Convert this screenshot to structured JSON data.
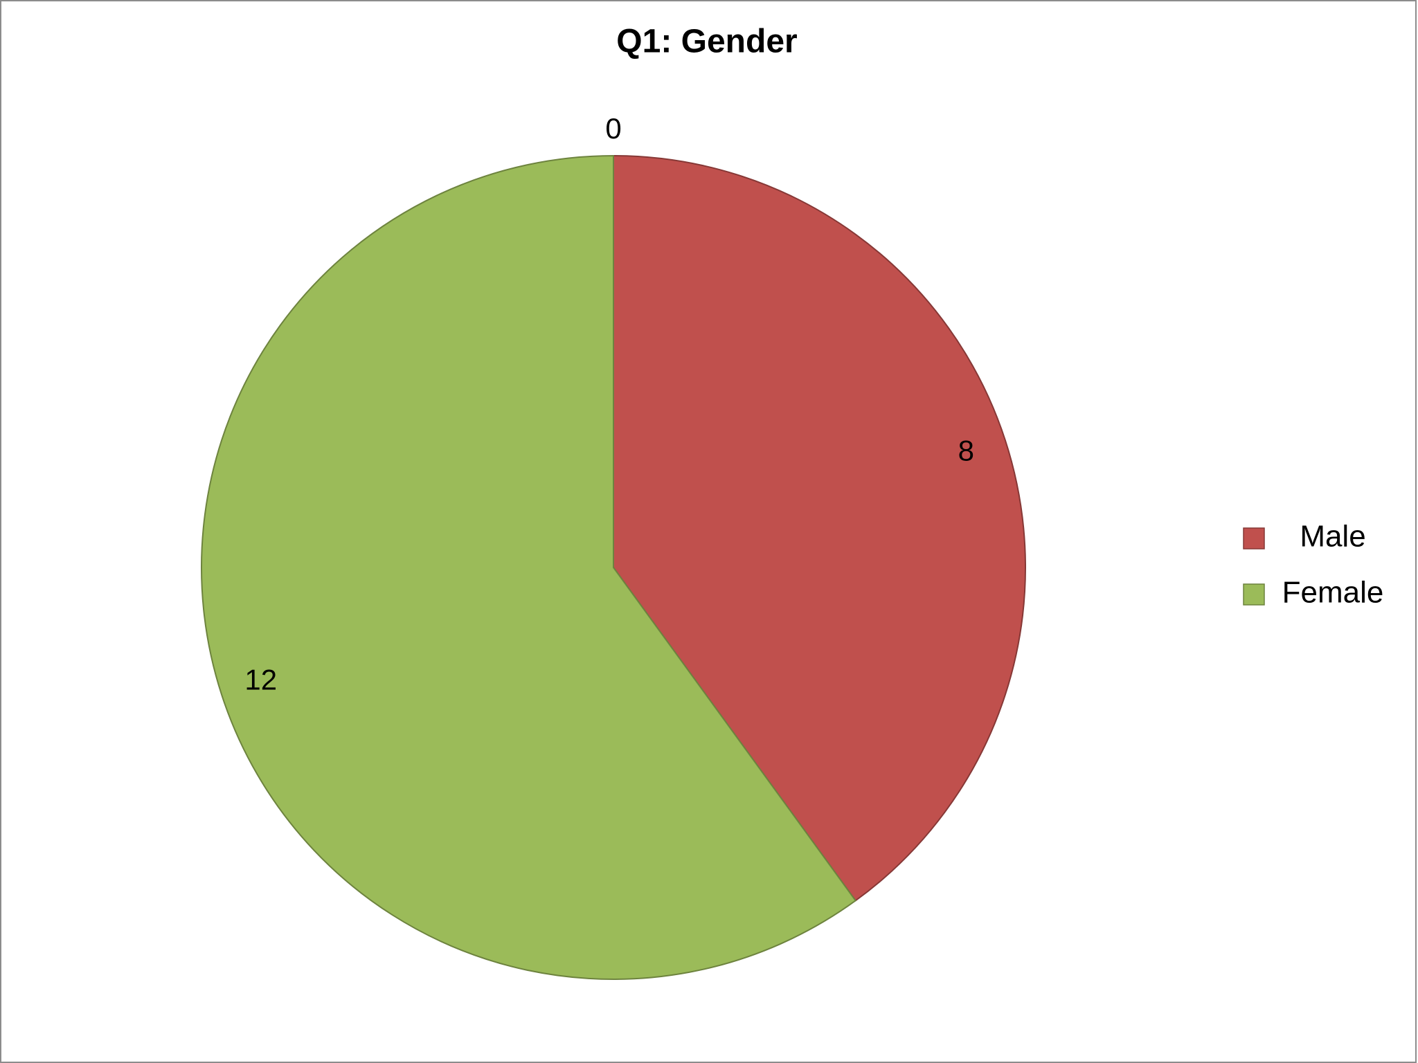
{
  "chart_data": {
    "type": "pie",
    "title": "Q1: Gender",
    "categories": [
      null,
      "Male",
      "Female"
    ],
    "values": [
      0,
      8,
      12
    ],
    "colors": [
      "#4f81bd",
      "#c0504d",
      "#9bbb59"
    ],
    "legend": "right"
  }
}
